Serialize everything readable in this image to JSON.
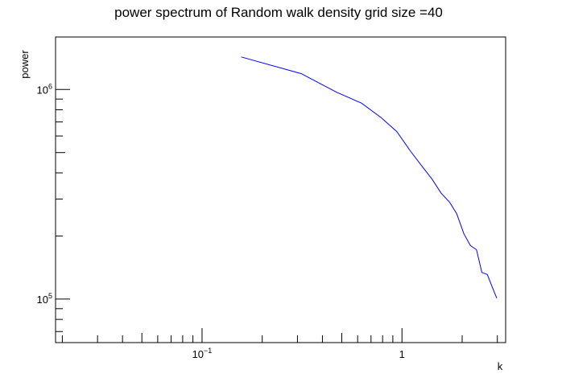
{
  "chart_data": {
    "type": "line",
    "title": "power spectrum of Random walk density grid size =40",
    "xlabel": "k",
    "ylabel": "power",
    "xscale": "log",
    "yscale": "log",
    "xlim": [
      0.0185,
      3.3
    ],
    "ylim": [
      62000,
      1780000
    ],
    "grid": false,
    "legend": "none",
    "line_color": "#0000ff",
    "x_ticks": [
      {
        "value": 0.1,
        "base": "10",
        "exp": "−1"
      },
      {
        "value": 1,
        "base": "1",
        "exp": ""
      }
    ],
    "y_ticks": [
      {
        "value": 100000,
        "base": "10",
        "exp": "5"
      },
      {
        "value": 1000000,
        "base": "10",
        "exp": "6"
      }
    ],
    "series": [
      {
        "x": [
          0.157,
          0.314,
          0.471,
          0.628,
          0.785,
          0.942,
          1.1,
          1.26,
          1.41,
          1.57,
          1.73,
          1.88,
          2.04,
          2.2,
          2.36,
          2.51,
          2.67,
          2.83,
          2.98
        ],
        "y": [
          1430000,
          1190000,
          970000,
          860000,
          735000,
          630000,
          510000,
          430000,
          375000,
          320000,
          290000,
          255000,
          205000,
          180000,
          172000,
          134000,
          131000,
          114000,
          101000
        ]
      }
    ]
  }
}
